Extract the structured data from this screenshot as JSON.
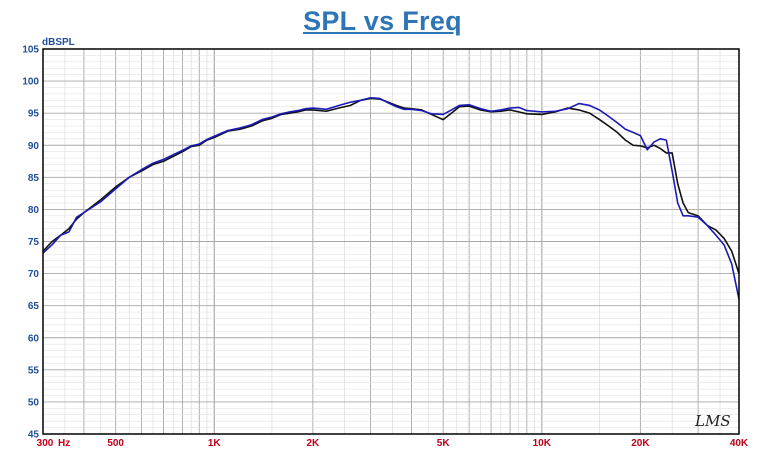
{
  "title": "SPL vs Freq",
  "chart_data": {
    "type": "line",
    "title": "SPL vs Freq",
    "ylabel": "dBSPL",
    "xlabel": "",
    "xscale": "log",
    "xlim": [
      300,
      40000
    ],
    "ylim": [
      45,
      105
    ],
    "grid": true,
    "legend": "none",
    "y_ticks": [
      45,
      50,
      55,
      60,
      65,
      70,
      75,
      80,
      85,
      90,
      95,
      100,
      105
    ],
    "x_ticks": [
      {
        "value": 300,
        "label": "300"
      },
      {
        "value": 500,
        "label": "500"
      },
      {
        "value": 1000,
        "label": "1K"
      },
      {
        "value": 2000,
        "label": "2K"
      },
      {
        "value": 5000,
        "label": "5K"
      },
      {
        "value": 10000,
        "label": "10K"
      },
      {
        "value": 20000,
        "label": "20K"
      },
      {
        "value": 40000,
        "label": "40K"
      }
    ],
    "x_unit_label": "Hz",
    "watermark": "LMS",
    "colors": {
      "series_black": "#111111",
      "series_blue": "#1a1ab8",
      "ytick": "#1f4e9a",
      "xtick": "#c0001a",
      "title": "#2e75b6",
      "grid": "#b5b5b5",
      "frame": "#000000"
    },
    "series": [
      {
        "color": "#111111",
        "points": [
          [
            300,
            73.5
          ],
          [
            320,
            75
          ],
          [
            340,
            76
          ],
          [
            360,
            77
          ],
          [
            380,
            78.5
          ],
          [
            400,
            79.5
          ],
          [
            450,
            81.5
          ],
          [
            500,
            83.5
          ],
          [
            550,
            85
          ],
          [
            600,
            86
          ],
          [
            650,
            87
          ],
          [
            700,
            87.5
          ],
          [
            800,
            89
          ],
          [
            850,
            89.8
          ],
          [
            900,
            90
          ],
          [
            950,
            90.8
          ],
          [
            1000,
            91.2
          ],
          [
            1100,
            92.2
          ],
          [
            1200,
            92.5
          ],
          [
            1300,
            93
          ],
          [
            1400,
            93.8
          ],
          [
            1500,
            94.2
          ],
          [
            1600,
            94.8
          ],
          [
            1700,
            95
          ],
          [
            1800,
            95.2
          ],
          [
            1900,
            95.5
          ],
          [
            2000,
            95.5
          ],
          [
            2200,
            95.3
          ],
          [
            2400,
            95.8
          ],
          [
            2600,
            96.2
          ],
          [
            2800,
            97
          ],
          [
            3000,
            97.3
          ],
          [
            3200,
            97.2
          ],
          [
            3400,
            96.7
          ],
          [
            3600,
            96.2
          ],
          [
            3800,
            95.8
          ],
          [
            4000,
            95.7
          ],
          [
            4300,
            95.5
          ],
          [
            4600,
            94.8
          ],
          [
            5000,
            94
          ],
          [
            5300,
            95
          ],
          [
            5600,
            96
          ],
          [
            6000,
            96.1
          ],
          [
            6500,
            95.5
          ],
          [
            7000,
            95.2
          ],
          [
            7500,
            95.3
          ],
          [
            8000,
            95.5
          ],
          [
            8500,
            95.2
          ],
          [
            9000,
            94.9
          ],
          [
            10000,
            94.8
          ],
          [
            11000,
            95.2
          ],
          [
            12000,
            95.8
          ],
          [
            13000,
            95.5
          ],
          [
            14000,
            95
          ],
          [
            15000,
            94
          ],
          [
            16000,
            93
          ],
          [
            17000,
            92
          ],
          [
            18000,
            90.8
          ],
          [
            19000,
            90
          ],
          [
            20000,
            89.9
          ],
          [
            21000,
            89.6
          ],
          [
            22000,
            90
          ],
          [
            23000,
            89.5
          ],
          [
            24000,
            88.8
          ],
          [
            25000,
            88.8
          ],
          [
            26000,
            84
          ],
          [
            27000,
            81
          ],
          [
            28000,
            79.5
          ],
          [
            30000,
            79
          ],
          [
            32000,
            77.5
          ],
          [
            34000,
            76.8
          ],
          [
            36000,
            75.5
          ],
          [
            38000,
            73.5
          ],
          [
            40000,
            70
          ]
        ]
      },
      {
        "color": "#1a1ab8",
        "points": [
          [
            300,
            73.2
          ],
          [
            320,
            74.5
          ],
          [
            340,
            76
          ],
          [
            360,
            76.5
          ],
          [
            380,
            78.8
          ],
          [
            400,
            79.5
          ],
          [
            450,
            81.2
          ],
          [
            500,
            83.2
          ],
          [
            550,
            85
          ],
          [
            600,
            86.2
          ],
          [
            650,
            87.2
          ],
          [
            700,
            87.8
          ],
          [
            800,
            89.2
          ],
          [
            850,
            89.9
          ],
          [
            900,
            90.2
          ],
          [
            950,
            90.9
          ],
          [
            1000,
            91.4
          ],
          [
            1100,
            92.3
          ],
          [
            1200,
            92.7
          ],
          [
            1300,
            93.2
          ],
          [
            1400,
            94
          ],
          [
            1500,
            94.4
          ],
          [
            1600,
            94.9
          ],
          [
            1700,
            95.2
          ],
          [
            1800,
            95.4
          ],
          [
            1900,
            95.7
          ],
          [
            2000,
            95.8
          ],
          [
            2200,
            95.6
          ],
          [
            2400,
            96.2
          ],
          [
            2600,
            96.7
          ],
          [
            2800,
            97
          ],
          [
            3000,
            97.4
          ],
          [
            3200,
            97.3
          ],
          [
            3400,
            96.6
          ],
          [
            3600,
            96
          ],
          [
            3800,
            95.6
          ],
          [
            4000,
            95.6
          ],
          [
            4300,
            95.4
          ],
          [
            4600,
            94.9
          ],
          [
            5000,
            94.8
          ],
          [
            5300,
            95.5
          ],
          [
            5600,
            96.2
          ],
          [
            6000,
            96.3
          ],
          [
            6500,
            95.7
          ],
          [
            7000,
            95.3
          ],
          [
            7500,
            95.5
          ],
          [
            8000,
            95.8
          ],
          [
            8500,
            95.9
          ],
          [
            9000,
            95.4
          ],
          [
            10000,
            95.2
          ],
          [
            11000,
            95.3
          ],
          [
            12000,
            95.7
          ],
          [
            13000,
            96.5
          ],
          [
            14000,
            96.2
          ],
          [
            15000,
            95.5
          ],
          [
            16000,
            94.5
          ],
          [
            17000,
            93.5
          ],
          [
            18000,
            92.5
          ],
          [
            19000,
            92
          ],
          [
            20000,
            91.5
          ],
          [
            21000,
            89.3
          ],
          [
            22000,
            90.5
          ],
          [
            23000,
            91
          ],
          [
            24000,
            90.8
          ],
          [
            25000,
            86
          ],
          [
            26000,
            81
          ],
          [
            27000,
            79
          ],
          [
            28000,
            79
          ],
          [
            30000,
            78.8
          ],
          [
            32000,
            77.5
          ],
          [
            34000,
            76
          ],
          [
            36000,
            74.5
          ],
          [
            38000,
            71.5
          ],
          [
            40000,
            66
          ]
        ]
      }
    ]
  }
}
